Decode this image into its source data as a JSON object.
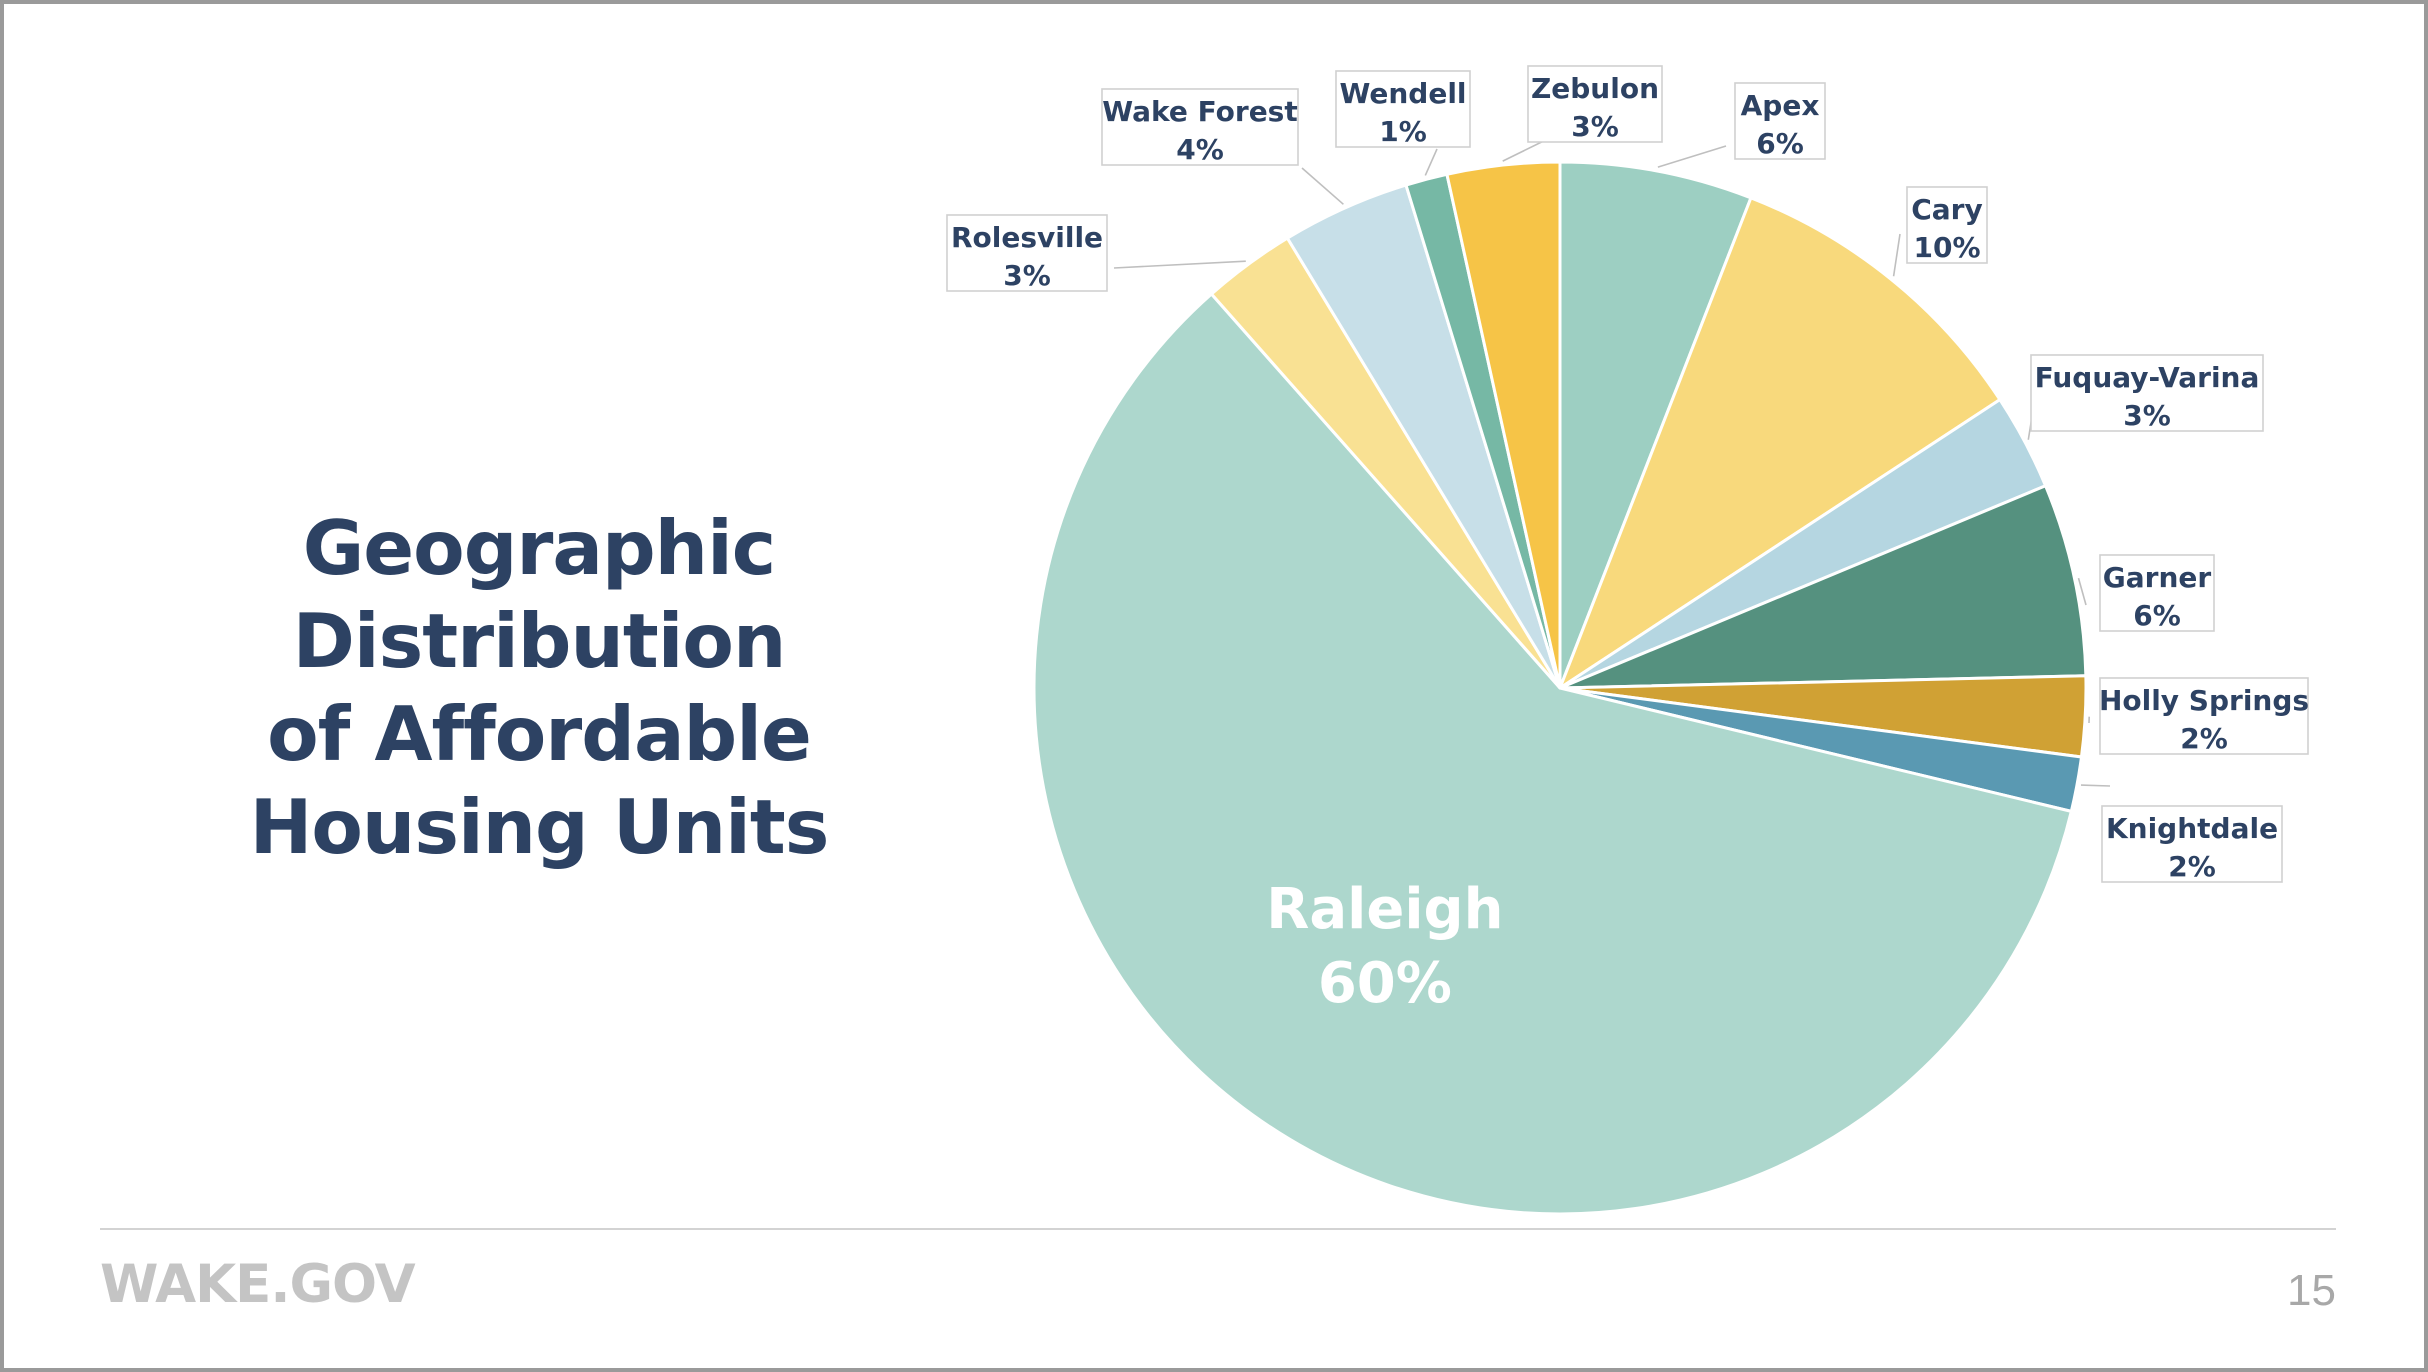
{
  "title_lines": [
    "Geographic",
    "Distribution",
    "of Affordable",
    "Housing Units"
  ],
  "footer": {
    "brand": "WAKE.GOV",
    "page_number": "15"
  },
  "colors": {
    "text_dark": "#2d4263",
    "leader": "#bfbfbf",
    "label_box_border": "#d0d0d0"
  },
  "chart_data": {
    "type": "pie",
    "start_angle_deg": 0,
    "direction": "clockwise",
    "slices": [
      {
        "name": "Apex",
        "label": "6%",
        "value": 6,
        "color": "#9dcfc2"
      },
      {
        "name": "Cary",
        "label": "10%",
        "value": 10,
        "color": "#f8d97c"
      },
      {
        "name": "Fuquay-Varina",
        "label": "3%",
        "value": 3,
        "color": "#b5d6e1"
      },
      {
        "name": "Garner",
        "label": "6%",
        "value": 6,
        "color": "#55917f"
      },
      {
        "name": "Holly Springs",
        "label": "2%",
        "value": 2.5,
        "color": "#d0a134"
      },
      {
        "name": "Knightdale",
        "label": "2%",
        "value": 1.7,
        "color": "#5a99b2"
      },
      {
        "name": "Raleigh",
        "label": "60%",
        "value": 60.6,
        "color": "#add7cd"
      },
      {
        "name": "Rolesville",
        "label": "3%",
        "value": 2.9,
        "color": "#f9e193"
      },
      {
        "name": "Wake Forest",
        "label": "4%",
        "value": 4,
        "color": "#c7dfe8"
      },
      {
        "name": "Wendell",
        "label": "1%",
        "value": 1.3,
        "color": "#76b8a5"
      },
      {
        "name": "Zebulon",
        "label": "3%",
        "value": 3.5,
        "color": "#f6c447"
      }
    ]
  }
}
